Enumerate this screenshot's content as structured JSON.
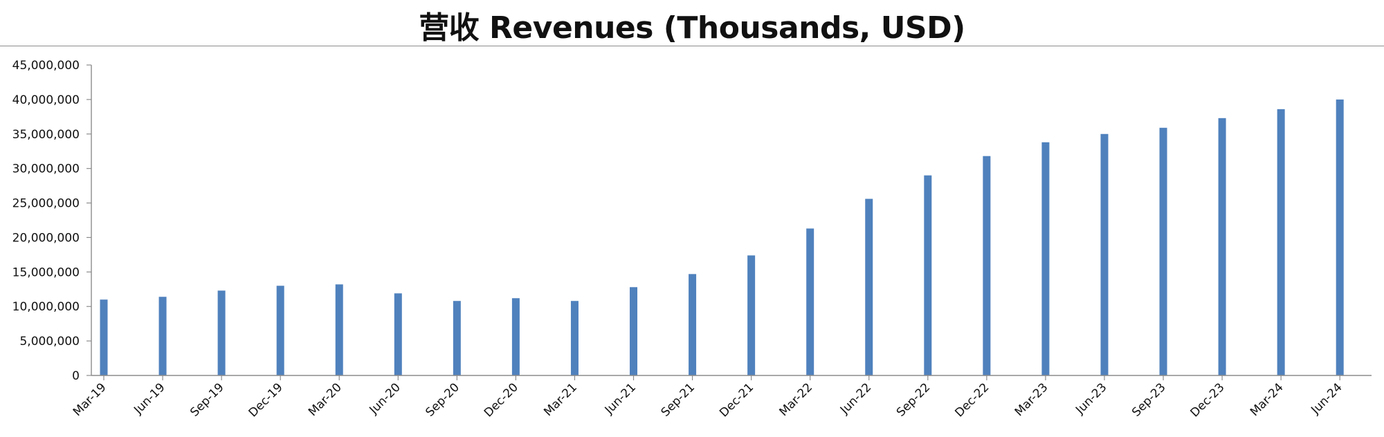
{
  "chart_data": {
    "type": "bar",
    "title": "营收 Revenues (Thousands, USD)",
    "xlabel": "",
    "ylabel": "",
    "ylim": [
      0,
      45000000
    ],
    "yticks": [
      "0",
      "5,000,000",
      "10,000,000",
      "15,000,000",
      "20,000,000",
      "25,000,000",
      "30,000,000",
      "35,000,000",
      "40,000,000",
      "45,000,000"
    ],
    "grid": false,
    "legend": "none",
    "bar_color": "#4f81bd",
    "categories": [
      "Mar-19",
      "Jun-19",
      "Sep-19",
      "Dec-19",
      "Mar-20",
      "Jun-20",
      "Sep-20",
      "Dec-20",
      "Mar-21",
      "Jun-21",
      "Sep-21",
      "Dec-21",
      "Mar-22",
      "Jun-22",
      "Sep-22",
      "Dec-22",
      "Mar-23",
      "Jun-23",
      "Sep-23",
      "Dec-23",
      "Mar-24",
      "Jun-24"
    ],
    "values": [
      11000000,
      11400000,
      12300000,
      13000000,
      13200000,
      11900000,
      10800000,
      11200000,
      10800000,
      12800000,
      14700000,
      17400000,
      21300000,
      25600000,
      29000000,
      31800000,
      33800000,
      35000000,
      35900000,
      37300000,
      38600000,
      40000000
    ]
  }
}
